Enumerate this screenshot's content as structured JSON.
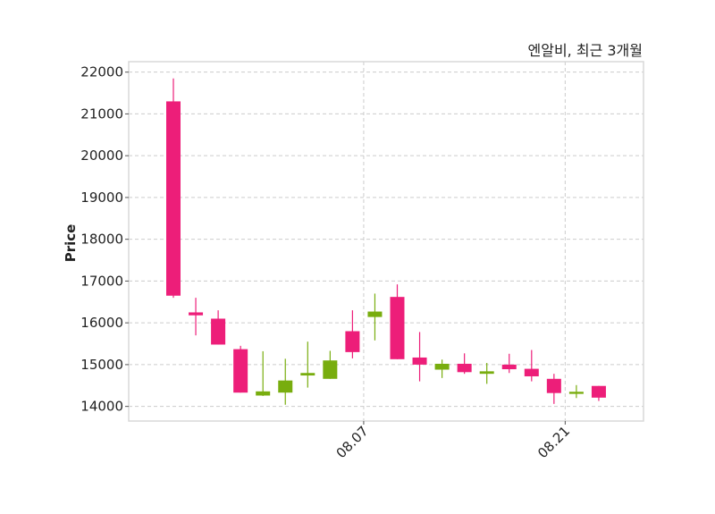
{
  "chart_data": {
    "type": "candlestick",
    "title": "엔알비, 최근 3개월",
    "ylabel": "Price",
    "xlabel": "",
    "ylim": [
      13650,
      22250
    ],
    "yticks": [
      14000,
      15000,
      16000,
      17000,
      18000,
      19000,
      20000,
      21000,
      22000
    ],
    "xticks": [
      {
        "index": 8.5,
        "label": "08.07"
      },
      {
        "index": 17.5,
        "label": "08.21"
      }
    ],
    "colors": {
      "up": "#78ad0e",
      "down": "#ed1e79"
    },
    "grid": true,
    "candles": [
      {
        "open": 21300,
        "high": 21850,
        "low": 16600,
        "close": 16650
      },
      {
        "open": 16250,
        "high": 16600,
        "low": 15700,
        "close": 16180
      },
      {
        "open": 16100,
        "high": 16300,
        "low": 15480,
        "close": 15480
      },
      {
        "open": 15370,
        "high": 15450,
        "low": 14330,
        "close": 14330
      },
      {
        "open": 14260,
        "high": 15320,
        "low": 14250,
        "close": 14360
      },
      {
        "open": 14330,
        "high": 15140,
        "low": 14040,
        "close": 14620
      },
      {
        "open": 14740,
        "high": 15550,
        "low": 14450,
        "close": 14800
      },
      {
        "open": 14660,
        "high": 15330,
        "low": 14660,
        "close": 15100
      },
      {
        "open": 15800,
        "high": 16300,
        "low": 15150,
        "close": 15300
      },
      {
        "open": 16140,
        "high": 16700,
        "low": 15580,
        "close": 16270
      },
      {
        "open": 16620,
        "high": 16920,
        "low": 15130,
        "close": 15130
      },
      {
        "open": 15170,
        "high": 15780,
        "low": 14600,
        "close": 15000
      },
      {
        "open": 14880,
        "high": 15120,
        "low": 14680,
        "close": 15020
      },
      {
        "open": 15020,
        "high": 15270,
        "low": 14780,
        "close": 14820
      },
      {
        "open": 14780,
        "high": 15040,
        "low": 14540,
        "close": 14840
      },
      {
        "open": 15000,
        "high": 15260,
        "low": 14800,
        "close": 14890
      },
      {
        "open": 14900,
        "high": 15350,
        "low": 14600,
        "close": 14720
      },
      {
        "open": 14660,
        "high": 14780,
        "low": 14060,
        "close": 14320
      },
      {
        "open": 14300,
        "high": 14510,
        "low": 14200,
        "close": 14350
      },
      {
        "open": 14490,
        "high": 14490,
        "low": 14130,
        "close": 14210
      }
    ]
  }
}
